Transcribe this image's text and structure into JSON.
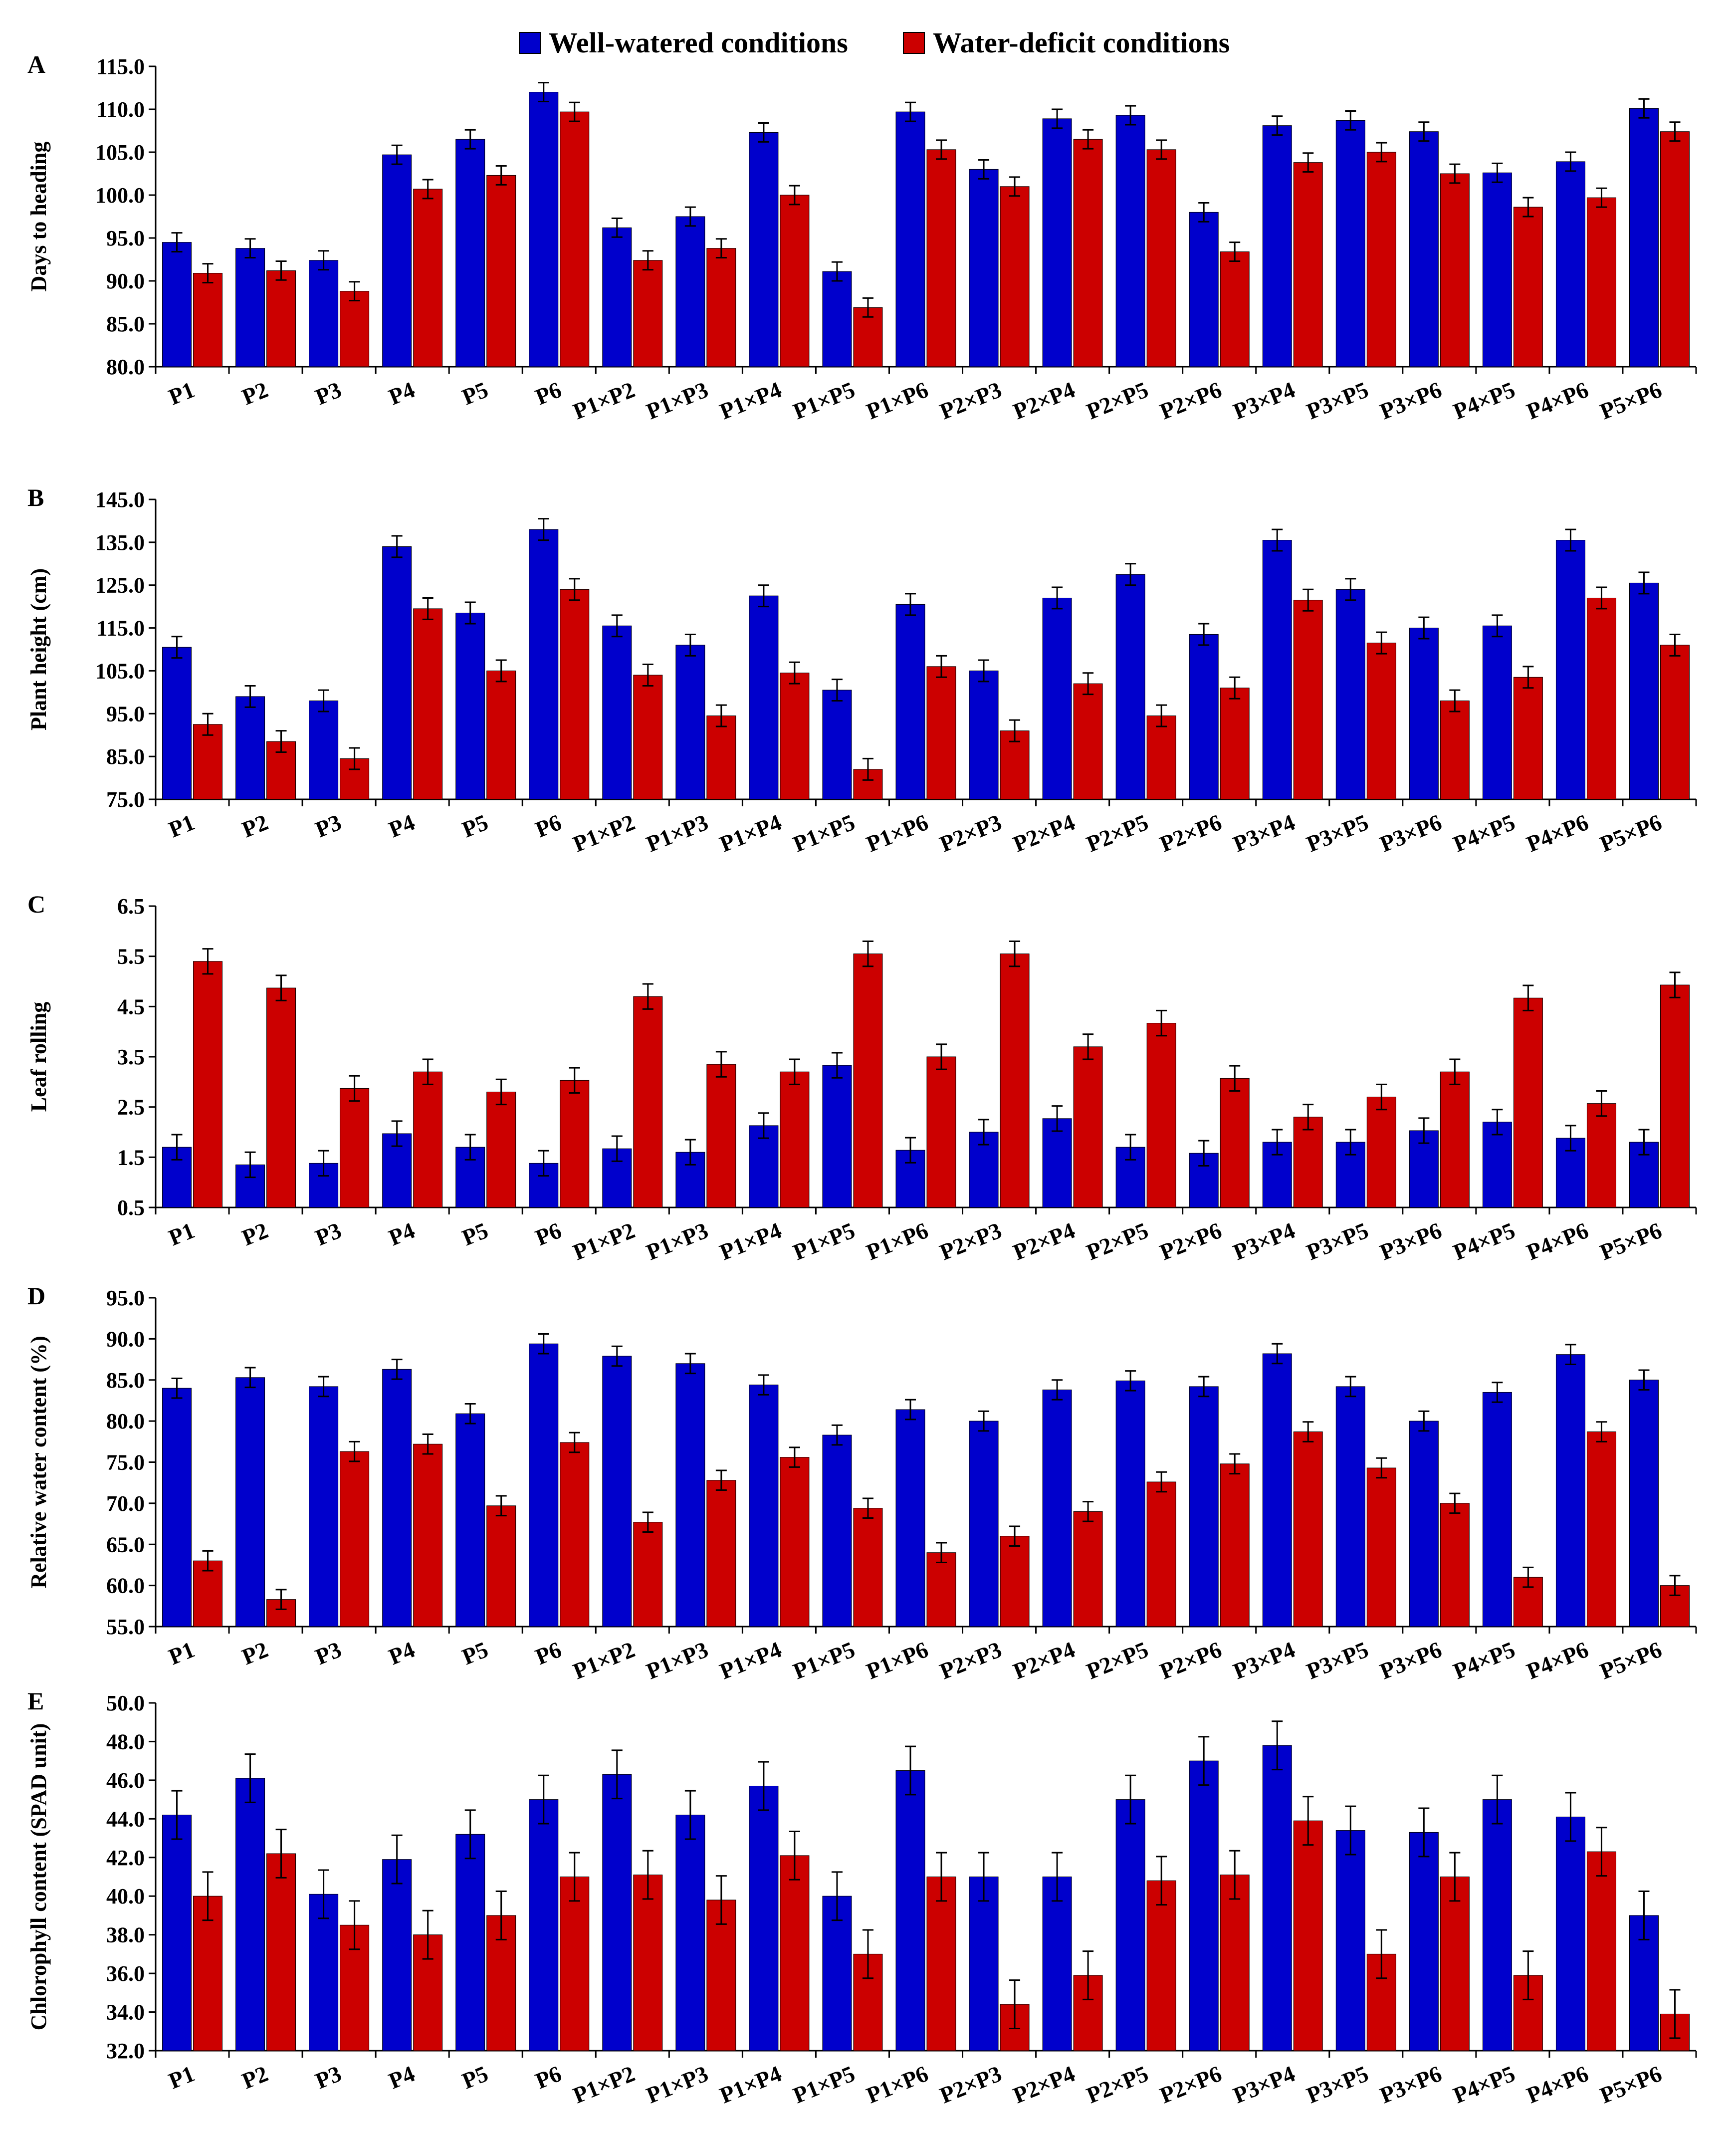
{
  "legend": {
    "well_label": "Well-watered conditions",
    "deficit_label": "Water-deficit conditions"
  },
  "colors": {
    "well": "#0000cc",
    "deficit": "#cc0000"
  },
  "chart_data": [
    {
      "type": "bar",
      "panel": "A",
      "ylabel": "Days to heading",
      "ylim": [
        80,
        115
      ],
      "yticks": [
        "80.0",
        "85.0",
        "90.0",
        "95.0",
        "100.0",
        "105.0",
        "110.0",
        "115.0"
      ],
      "categories": [
        "P1",
        "P2",
        "P3",
        "P4",
        "P5",
        "P6",
        "P1×P2",
        "P1×P3",
        "P1×P4",
        "P1×P5",
        "P1×P6",
        "P2×P3",
        "P2×P4",
        "P2×P5",
        "P2×P6",
        "P3×P4",
        "P3×P5",
        "P3×P6",
        "P4×P5",
        "P4×P6",
        "P5×P6"
      ],
      "series": [
        {
          "name": "Well-watered conditions",
          "values": [
            94.5,
            93.8,
            92.4,
            104.7,
            106.5,
            112.0,
            96.2,
            97.5,
            107.3,
            91.1,
            109.7,
            103.0,
            108.9,
            109.3,
            98.0,
            108.1,
            108.7,
            107.4,
            102.6,
            103.9,
            110.1
          ],
          "error": 1.1
        },
        {
          "name": "Water-deficit conditions",
          "values": [
            90.9,
            91.2,
            88.8,
            100.7,
            102.3,
            109.7,
            92.4,
            93.8,
            100.0,
            86.9,
            105.3,
            101.0,
            106.5,
            105.3,
            93.4,
            103.8,
            105.0,
            102.5,
            98.6,
            99.7,
            107.4
          ],
          "error": 1.1
        }
      ]
    },
    {
      "type": "bar",
      "panel": "B",
      "ylabel": "Plant height (cm)",
      "ylim": [
        75,
        145
      ],
      "yticks": [
        "75.0",
        "85.0",
        "95.0",
        "105.0",
        "115.0",
        "125.0",
        "135.0",
        "145.0"
      ],
      "categories": [
        "P1",
        "P2",
        "P3",
        "P4",
        "P5",
        "P6",
        "P1×P2",
        "P1×P3",
        "P1×P4",
        "P1×P5",
        "P1×P6",
        "P2×P3",
        "P2×P4",
        "P2×P5",
        "P2×P6",
        "P3×P4",
        "P3×P5",
        "P3×P6",
        "P4×P5",
        "P4×P6",
        "P5×P6"
      ],
      "series": [
        {
          "name": "Well-watered conditions",
          "values": [
            110.5,
            99.0,
            98.0,
            134.0,
            118.5,
            138.0,
            115.5,
            111.0,
            122.5,
            100.5,
            120.5,
            105.0,
            122.0,
            127.5,
            113.5,
            135.5,
            124.0,
            115.0,
            115.5,
            135.5,
            125.5
          ],
          "error": 2.5
        },
        {
          "name": "Water-deficit conditions",
          "values": [
            92.5,
            88.5,
            84.5,
            119.5,
            105.0,
            124.0,
            104.0,
            94.5,
            104.5,
            82.0,
            106.0,
            91.0,
            102.0,
            94.5,
            101.0,
            121.5,
            111.5,
            98.0,
            103.5,
            122.0,
            111.0
          ],
          "error": 2.5
        }
      ]
    },
    {
      "type": "bar",
      "panel": "C",
      "ylabel": "Leaf rolling",
      "ylim": [
        0.5,
        6.5
      ],
      "yticks": [
        "0.5",
        "1.5",
        "2.5",
        "3.5",
        "4.5",
        "5.5",
        "6.5"
      ],
      "categories": [
        "P1",
        "P2",
        "P3",
        "P4",
        "P5",
        "P6",
        "P1×P2",
        "P1×P3",
        "P1×P4",
        "P1×P5",
        "P1×P6",
        "P2×P3",
        "P2×P4",
        "P2×P5",
        "P2×P6",
        "P3×P4",
        "P3×P5",
        "P3×P6",
        "P4×P5",
        "P4×P6",
        "P5×P6"
      ],
      "series": [
        {
          "name": "Well-watered conditions",
          "values": [
            1.7,
            1.35,
            1.38,
            1.97,
            1.7,
            1.38,
            1.67,
            1.6,
            2.13,
            3.33,
            1.64,
            2.0,
            2.27,
            1.7,
            1.58,
            1.8,
            1.8,
            2.03,
            2.2,
            1.88,
            1.8
          ],
          "error": 0.25
        },
        {
          "name": "Water-deficit conditions",
          "values": [
            5.4,
            4.87,
            2.87,
            3.2,
            2.8,
            3.03,
            4.7,
            3.35,
            3.2,
            5.55,
            3.5,
            5.55,
            3.7,
            4.17,
            3.07,
            2.3,
            2.7,
            3.2,
            4.67,
            2.57,
            4.93
          ],
          "error": 0.25
        }
      ]
    },
    {
      "type": "bar",
      "panel": "D",
      "ylabel": "Relative water  content  (%)",
      "ylim": [
        55,
        95
      ],
      "yticks": [
        "55.0",
        "60.0",
        "65.0",
        "70.0",
        "75.0",
        "80.0",
        "85.0",
        "90.0",
        "95.0"
      ],
      "categories": [
        "P1",
        "P2",
        "P3",
        "P4",
        "P5",
        "P6",
        "P1×P2",
        "P1×P3",
        "P1×P4",
        "P1×P5",
        "P1×P6",
        "P2×P3",
        "P2×P4",
        "P2×P5",
        "P2×P6",
        "P3×P4",
        "P3×P5",
        "P3×P6",
        "P4×P5",
        "P4×P6",
        "P5×P6"
      ],
      "series": [
        {
          "name": "Well-watered conditions",
          "values": [
            84.0,
            85.3,
            84.2,
            86.3,
            80.9,
            89.4,
            87.9,
            87.0,
            84.4,
            78.3,
            81.4,
            80.0,
            83.8,
            84.9,
            84.2,
            88.2,
            84.2,
            80.0,
            83.5,
            88.1,
            85.0
          ],
          "error": 1.2
        },
        {
          "name": "Water-deficit conditions",
          "values": [
            63.0,
            58.3,
            76.3,
            77.2,
            69.7,
            77.4,
            67.7,
            72.8,
            75.6,
            69.4,
            64.0,
            66.0,
            69.0,
            72.6,
            74.8,
            78.7,
            74.3,
            70.0,
            61.0,
            78.7,
            60.0
          ],
          "error": 1.2
        }
      ]
    },
    {
      "type": "bar",
      "panel": "E",
      "ylabel": "Chlorophyll content (SPAD unit)",
      "ylim": [
        32,
        50
      ],
      "yticks": [
        "32.0",
        "34.0",
        "36.0",
        "38.0",
        "40.0",
        "42.0",
        "44.0",
        "46.0",
        "48.0",
        "50.0"
      ],
      "categories": [
        "P1",
        "P2",
        "P3",
        "P4",
        "P5",
        "P6",
        "P1×P2",
        "P1×P3",
        "P1×P4",
        "P1×P5",
        "P1×P6",
        "P2×P3",
        "P2×P4",
        "P2×P5",
        "P2×P6",
        "P3×P4",
        "P3×P5",
        "P3×P6",
        "P4×P5",
        "P4×P6",
        "P5×P6"
      ],
      "series": [
        {
          "name": "Well-watered conditions",
          "values": [
            44.2,
            46.1,
            40.1,
            41.9,
            43.2,
            45.0,
            46.3,
            44.2,
            45.7,
            40.0,
            46.5,
            41.0,
            41.0,
            45.0,
            47.0,
            47.8,
            43.4,
            43.3,
            45.0,
            44.1,
            39.0
          ],
          "error": 1.25
        },
        {
          "name": "Water-deficit conditions",
          "values": [
            40.0,
            42.2,
            38.5,
            38.0,
            39.0,
            41.0,
            41.1,
            39.8,
            42.1,
            37.0,
            41.0,
            34.4,
            35.9,
            40.8,
            41.1,
            43.9,
            37.0,
            41.0,
            35.9,
            42.3,
            33.9
          ],
          "error": 1.25
        }
      ]
    }
  ]
}
